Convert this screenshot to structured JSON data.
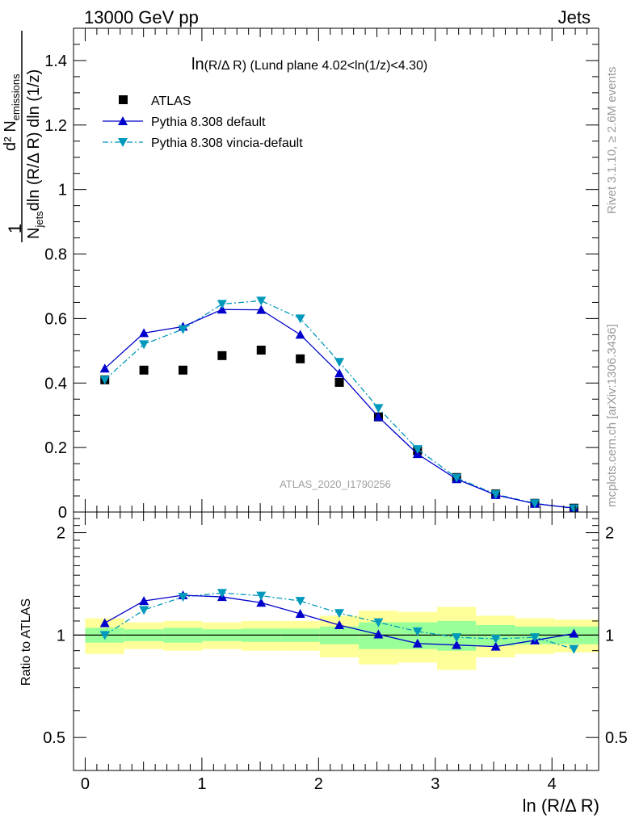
{
  "header": {
    "left": "13000 GeV pp",
    "right": "Jets"
  },
  "side_labels": {
    "rivet": "Rivet 3.1.10, ≥ 2.6M events",
    "mcplots": "mcplots.cern.ch [arXiv:1306.3436]"
  },
  "watermark": "ATLAS_2020_I1790256",
  "plot_title": {
    "prefix": "ln",
    "sub": "(R/Δ R)",
    "rest": " (Lund plane 4.02<ln(1/z)<4.30)"
  },
  "legend": {
    "items": [
      "ATLAS",
      "Pythia 8.308 default",
      "Pythia 8.308 vincia-default"
    ]
  },
  "ylabel_main": {
    "num": "d² N",
    "num_sub": "emissions",
    "den_a": "N",
    "den_a_sub": "jets",
    "den_b": "dln (R/Δ R) dln (1/z)",
    "one": "1"
  },
  "ylabel_ratio": "Ratio to ATLAS",
  "xlabel": "ln (R/Δ R)",
  "colors": {
    "data": "#000000",
    "default": "#0000cc",
    "vincia": "#0099bb",
    "band_inner": "#99ff99",
    "band_outer": "#ffff99"
  },
  "chart_data": [
    {
      "type": "scatter",
      "panel": "main",
      "x": [
        0.168,
        0.503,
        0.838,
        1.173,
        1.508,
        1.843,
        2.178,
        2.513,
        2.848,
        3.183,
        3.518,
        3.853,
        4.188
      ],
      "xlim": [
        -0.1,
        4.4
      ],
      "ylim": [
        0,
        1.5
      ],
      "yticks": [
        0,
        0.2,
        0.4,
        0.6,
        0.8,
        1,
        1.2,
        1.4
      ],
      "ytick_labels": [
        "0",
        "0.2",
        "0.4",
        "0.6",
        "0.8",
        "1",
        "1.2",
        "1.4"
      ],
      "series": [
        {
          "name": "ATLAS",
          "values": [
            0.41,
            0.44,
            0.44,
            0.485,
            0.502,
            0.475,
            0.402,
            0.295,
            0.19,
            0.107,
            0.056,
            0.027,
            0.012
          ]
        },
        {
          "name": "Pythia 8.308 default",
          "values": [
            0.445,
            0.555,
            0.575,
            0.628,
            0.627,
            0.55,
            0.43,
            0.295,
            0.18,
            0.102,
            0.053,
            0.026,
            0.012
          ]
        },
        {
          "name": "Pythia 8.308 vincia-default",
          "values": [
            0.41,
            0.52,
            0.567,
            0.645,
            0.655,
            0.6,
            0.465,
            0.322,
            0.195,
            0.106,
            0.055,
            0.027,
            0.011
          ]
        }
      ]
    },
    {
      "type": "line",
      "panel": "ratio",
      "x": [
        0.168,
        0.503,
        0.838,
        1.173,
        1.508,
        1.843,
        2.178,
        2.513,
        2.848,
        3.183,
        3.518,
        3.853,
        4.188
      ],
      "xlim": [
        -0.1,
        4.4
      ],
      "ylim": [
        0.4,
        2.3
      ],
      "log_scale": true,
      "yticks": [
        0.5,
        1,
        2
      ],
      "ytick_labels": [
        "0.5",
        "1",
        "2"
      ],
      "xticks": [
        0,
        1,
        2,
        3,
        4
      ],
      "xtick_labels": [
        "0",
        "1",
        "2",
        "3",
        "4"
      ],
      "reference": 1,
      "band_edges": [
        0,
        0.335,
        0.67,
        1.005,
        1.34,
        1.675,
        2.01,
        2.345,
        2.68,
        3.015,
        3.35,
        3.685,
        4.02,
        4.4
      ],
      "band_inner": [
        [
          0.95,
          1.05
        ],
        [
          0.96,
          1.04
        ],
        [
          0.95,
          1.05
        ],
        [
          0.96,
          1.04
        ],
        [
          0.955,
          1.045
        ],
        [
          0.955,
          1.045
        ],
        [
          0.94,
          1.06
        ],
        [
          0.91,
          1.09
        ],
        [
          0.91,
          1.09
        ],
        [
          0.9,
          1.1
        ],
        [
          0.93,
          1.07
        ],
        [
          0.94,
          1.06
        ],
        [
          0.94,
          1.06
        ]
      ],
      "band_outer": [
        [
          0.88,
          1.12
        ],
        [
          0.91,
          1.09
        ],
        [
          0.9,
          1.1
        ],
        [
          0.91,
          1.09
        ],
        [
          0.9,
          1.1
        ],
        [
          0.9,
          1.1
        ],
        [
          0.86,
          1.14
        ],
        [
          0.82,
          1.18
        ],
        [
          0.83,
          1.17
        ],
        [
          0.79,
          1.21
        ],
        [
          0.86,
          1.14
        ],
        [
          0.88,
          1.12
        ],
        [
          0.89,
          1.11
        ]
      ],
      "series": [
        {
          "name": "Pythia 8.308 default",
          "values": [
            1.085,
            1.26,
            1.31,
            1.295,
            1.245,
            1.155,
            1.07,
            1.005,
            0.945,
            0.935,
            0.925,
            0.965,
            1.01
          ]
        },
        {
          "name": "Pythia 8.308 vincia-default",
          "values": [
            1.0,
            1.185,
            1.295,
            1.33,
            1.305,
            1.26,
            1.16,
            1.09,
            1.025,
            0.985,
            0.975,
            0.985,
            0.91
          ]
        }
      ]
    }
  ]
}
